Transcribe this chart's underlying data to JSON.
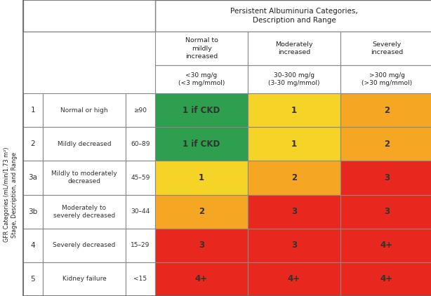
{
  "title_top": "Persistent Albuminuria Categories,\nDescription and Range",
  "col_headers_1": [
    "Normal to\nmildly\nincreased",
    "Moderately\nincreased",
    "Severely\nincreased"
  ],
  "col_headers_2": [
    "<30 mg/g\n(<3 mg/mmol)",
    "30-300 mg/g\n(3-30 mg/mmol)",
    ">300 mg/g\n(>30 mg/mmol)"
  ],
  "y_axis_label": "GFR Categories (mL/min/1.73 m²)\nStage, Description, and Range",
  "row_stages": [
    "1",
    "2",
    "3a",
    "3b",
    "4",
    "5"
  ],
  "row_descriptions": [
    "Normal or high",
    "Mildly decreased",
    "Mildly to moderately\ndecreased",
    "Moderately to\nseverely decreased",
    "Severely decreased",
    "Kidney failure"
  ],
  "row_ranges": [
    "≥90",
    "60–89",
    "45–59",
    "30–44",
    "15–29",
    "<15"
  ],
  "cell_values": [
    [
      "1 if CKD",
      "1",
      "2"
    ],
    [
      "1 if CKD",
      "1",
      "2"
    ],
    [
      "1",
      "2",
      "3"
    ],
    [
      "2",
      "3",
      "3"
    ],
    [
      "3",
      "3",
      "4+"
    ],
    [
      "4+",
      "4+",
      "4+"
    ]
  ],
  "cell_colors": [
    [
      "#2e9e4f",
      "#f5d327",
      "#f5a623"
    ],
    [
      "#2e9e4f",
      "#f5d327",
      "#f5a623"
    ],
    [
      "#f5d327",
      "#f5a623",
      "#e8281e"
    ],
    [
      "#f5a623",
      "#e8281e",
      "#e8281e"
    ],
    [
      "#e8281e",
      "#e8281e",
      "#e8281e"
    ],
    [
      "#e8281e",
      "#e8281e",
      "#e8281e"
    ]
  ],
  "background_color": "#ffffff",
  "header_bg": "#f0f0f0",
  "border_color": "#888888",
  "text_color_dark": "#333333",
  "text_color_light": "#ffffff"
}
